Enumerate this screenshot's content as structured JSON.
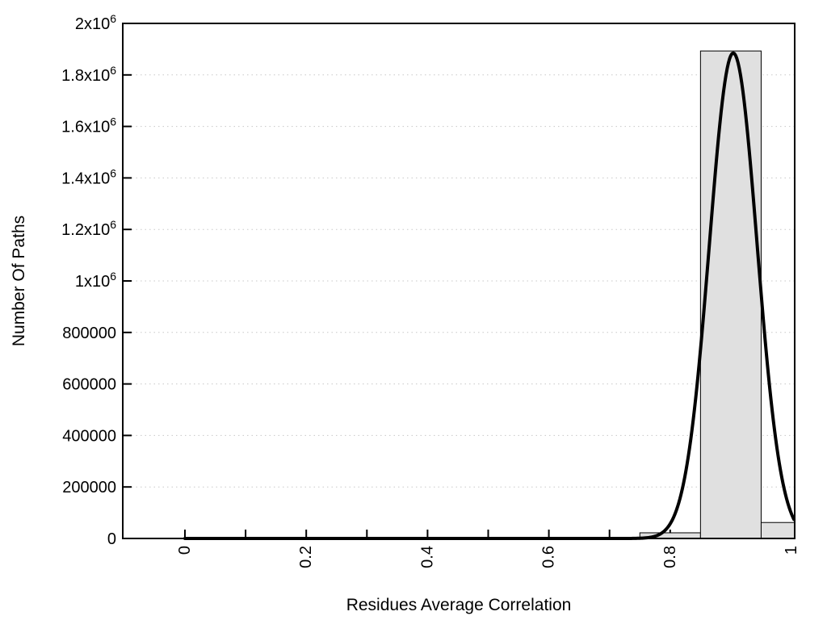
{
  "figure": {
    "background": "#ffffff",
    "plot_background": "#ffffff"
  },
  "chart_data": {
    "type": "bar+line",
    "title": "",
    "xlabel": "Residues Average Correlation",
    "ylabel": "Number Of Paths",
    "xlim": [
      -0.1025,
      1.0053
    ],
    "ylim": [
      0,
      2000000
    ],
    "axis_color": "#000000",
    "grid": {
      "horizontal": "dotted",
      "vertical": "none",
      "color": "#c8c8c8"
    },
    "legend": "none",
    "yticks": {
      "values": [
        0,
        200000,
        400000,
        600000,
        800000,
        1000000,
        1200000,
        1400000,
        1600000,
        1800000,
        2000000
      ],
      "labels": [
        "0",
        "200000",
        "400000",
        "600000",
        "800000",
        "1x10^6",
        "1.2x10^6",
        "1.4x10^6",
        "1.6x10^6",
        "1.8x10^6",
        "2x10^6"
      ]
    },
    "xticks": {
      "tick_values": [
        0,
        0.1,
        0.2,
        0.3,
        0.4,
        0.5,
        0.6,
        0.7,
        0.8,
        0.9,
        1
      ],
      "labeled_values": [
        0,
        0.2,
        0.4,
        0.6,
        0.8,
        1
      ],
      "labels": [
        "0",
        "0.2",
        "0.4",
        "0.6",
        "0.8",
        "1"
      ],
      "label_rotation_deg": -90
    },
    "histogram": {
      "bin_width": 0.1,
      "bins": [
        {
          "center": 0.8,
          "count": 22000
        },
        {
          "center": 0.9,
          "count": 1893000
        },
        {
          "center": 1.0,
          "count": 62000
        }
      ],
      "fill_color": "#e0e0e0",
      "border_color": "#000000"
    },
    "fit_curve": {
      "shape": "gaussian",
      "amplitude": 1885000,
      "mean": 0.904,
      "sigma": 0.0393,
      "x_start": 0,
      "x_end": 1.0053,
      "color": "#000000",
      "stroke_width": 4
    }
  }
}
